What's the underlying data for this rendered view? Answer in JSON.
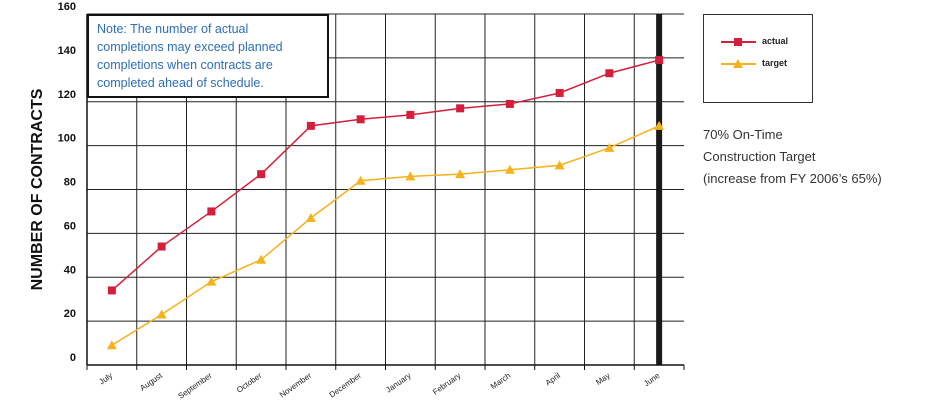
{
  "chart_data": {
    "type": "line",
    "categories": [
      "July",
      "August",
      "September",
      "October",
      "November",
      "December",
      "January",
      "February",
      "March",
      "April",
      "May",
      "June"
    ],
    "series": [
      {
        "name": "actual",
        "color": "#d41f3c",
        "marker": "square",
        "values": [
          34,
          54,
          70,
          87,
          109,
          112,
          114,
          117,
          119,
          124,
          133,
          139
        ]
      },
      {
        "name": "target",
        "color": "#f5b21a",
        "marker": "triangle",
        "values": [
          9,
          23,
          38,
          48,
          67,
          84,
          86,
          87,
          89,
          91,
          99,
          109
        ]
      }
    ],
    "title": "",
    "xlabel": "",
    "ylabel": "NUMBER OF CONTRACTS",
    "ylim": [
      0,
      160
    ],
    "yticks": [
      0,
      20,
      40,
      60,
      80,
      100,
      120,
      140,
      160
    ],
    "grid": true,
    "legend_position": "top-right"
  },
  "note": {
    "lines": [
      "Note: The number of actual",
      "completions may exceed planned",
      "completions when contracts are",
      "completed ahead of schedule."
    ]
  },
  "side_note": {
    "lines": [
      "70% On-Time",
      "Construction Target",
      "(increase from FY 2006’s 65%)"
    ]
  }
}
